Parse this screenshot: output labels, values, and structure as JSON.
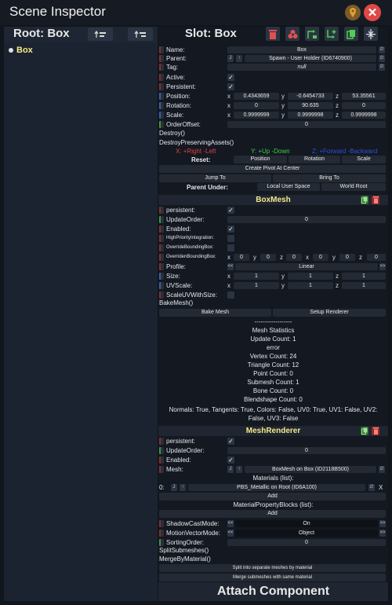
{
  "window": {
    "title": "Scene Inspector"
  },
  "root": {
    "title": "Root: Box",
    "tree_item": "Box"
  },
  "slot": {
    "title": "Slot: Box"
  },
  "slotfields": {
    "name_label": "Name:",
    "name_value": "Box",
    "parent_label": "Parent:",
    "parent_value": "Spawn - User Holder (ID6740900)",
    "tag_label": "Tag:",
    "tag_value": "null",
    "active_label": "Active:",
    "persistent_label": "Persistent:",
    "position_label": "Position:",
    "position": [
      "0.4343659",
      "-0.6454733",
      "53.35561"
    ],
    "rotation_label": "Rotation:",
    "rotation": [
      "0",
      "90.635",
      "0"
    ],
    "scale_label": "Scale:",
    "scale": [
      "0.9999999",
      "0.9999998",
      "0.9999998"
    ],
    "orderoffset_label": "OrderOffset:",
    "orderoffset_value": "0",
    "destroy": "Destroy()",
    "destroy_preserving": "DestroyPreservingAssets()",
    "x_hint": "X: +Right -Left",
    "y_hint": "Y: +Up -Down",
    "z_hint": "Z: +Forward -Backward",
    "reset_label": "Reset:",
    "reset_position": "Position",
    "reset_rotation": "Rotation",
    "reset_scale": "Scale",
    "create_pivot": "Create Pivot At Center",
    "jump_to": "Jump To",
    "bring_to": "Bring To",
    "parent_under": "Parent Under:",
    "local_user_space": "Local User Space",
    "world_root": "World Root"
  },
  "axes": {
    "x": "x",
    "y": "y",
    "z": "z",
    "X": "X",
    "Y": "Y",
    "Z": "Z"
  },
  "boxmesh": {
    "title": "BoxMesh",
    "persistent_label": "persistent:",
    "updateorder_label": "UpdateOrder:",
    "updateorder_value": "0",
    "enabled_label": "Enabled:",
    "highpriority_label": "HighPriorityIntegration:",
    "overridebb_label": "OverrideBoundingBox:",
    "overriddenbb_label": "OverridenBoundingBox:",
    "overriddenbb": [
      "0",
      "0",
      "0",
      "0",
      "0",
      "0"
    ],
    "profile_label": "Profile:",
    "profile_value": "Linear",
    "size_label": "Size:",
    "size": [
      "1",
      "1",
      "1"
    ],
    "uvscale_label": "UVScale:",
    "uvscale": [
      "1",
      "1",
      "1"
    ],
    "scaleuv_label": "ScaleUVWithSize:",
    "bakemesh": "BakeMesh()",
    "bake_button": "Bake Mesh",
    "setup_renderer": "Setup Renderer"
  },
  "stats": {
    "divider": "------------------",
    "title": "Mesh Statistics",
    "update_count": "Update Count: 1",
    "error": "error",
    "vertex_count": "Vertex Count: 24",
    "triangle_count": "Triangle Count: 12",
    "point_count": "Point Count: 0",
    "submesh_count": "Submesh Count: 1",
    "bone_count": "Bone Count: 0",
    "blendshape_count": "Blendshape Count: 0",
    "normals_line1": "Normals: True, Tangents: True, Colors: False, UV0: True, UV1: False, UV2:",
    "normals_line2": "False, UV3: False"
  },
  "meshrenderer": {
    "title": "MeshRenderer",
    "persistent_label": "persistent:",
    "updateorder_label": "UpdateOrder:",
    "updateorder_value": "0",
    "enabled_label": "Enabled:",
    "mesh_label": "Mesh:",
    "mesh_value": "BoxMesh on Box (ID2118B500)",
    "materials_label": "Materials (list):",
    "material_index": "0:",
    "material_value": "PBS_Metallic on Root (ID6A100)",
    "add": "Add",
    "propblocks_label": "MaterialPropertyBlocks (list):",
    "shadow_label": "ShadowCastMode:",
    "shadow_value": "On",
    "motion_label": "MotionVectorMode:",
    "motion_value": "Object",
    "sorting_label": "SortingOrder:",
    "sorting_value": "0",
    "split": "SplitSubmeshes()",
    "merge": "MergeByMaterial()",
    "split_button": "Split into separate meshes by material",
    "merge_button": "Merge submeshes with same material"
  },
  "attach": "Attach Component",
  "colors": {
    "accent_yellow": "#f4e98a",
    "hint_red": "#e04040",
    "hint_green": "#40d040",
    "hint_blue": "#2f52d6",
    "close": "#e04848",
    "delete": "#e05050",
    "duplicate": "#3fae3f"
  }
}
